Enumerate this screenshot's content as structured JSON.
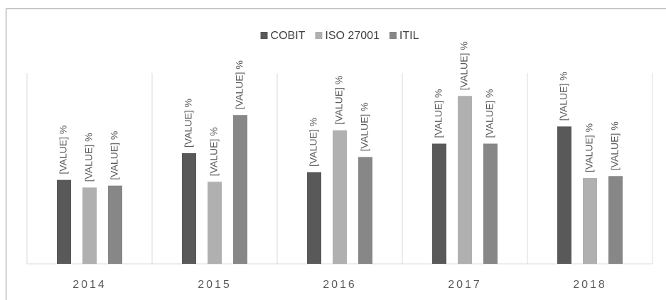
{
  "chart_data": {
    "type": "bar",
    "categories": [
      "2014",
      "2015",
      "2016",
      "2017",
      "2018"
    ],
    "series": [
      {
        "name": "COBIT",
        "color": "#595959",
        "values": [
          44,
          58,
          48,
          63,
          72
        ],
        "value_labels": [
          "[VALUE] %",
          "[VALUE] %",
          "[VALUE] %",
          "[VALUE] %",
          "[VALUE] %"
        ]
      },
      {
        "name": "ISO 27001",
        "color": "#b0b0b0",
        "values": [
          40,
          43,
          70,
          88,
          45
        ],
        "value_labels": [
          "[VALUE] %",
          "[VALUE] %",
          "[VALUE] %",
          "[VALUE] %",
          "[VALUE] %"
        ]
      },
      {
        "name": "ITIL",
        "color": "#878787",
        "values": [
          41,
          78,
          56,
          63,
          46
        ],
        "value_labels": [
          "[VALUE] %",
          "[VALUE] %",
          "[VALUE] %",
          "[VALUE] %",
          "[VALUE] %"
        ]
      }
    ],
    "ylim": [
      0,
      100
    ],
    "legend": "top"
  }
}
